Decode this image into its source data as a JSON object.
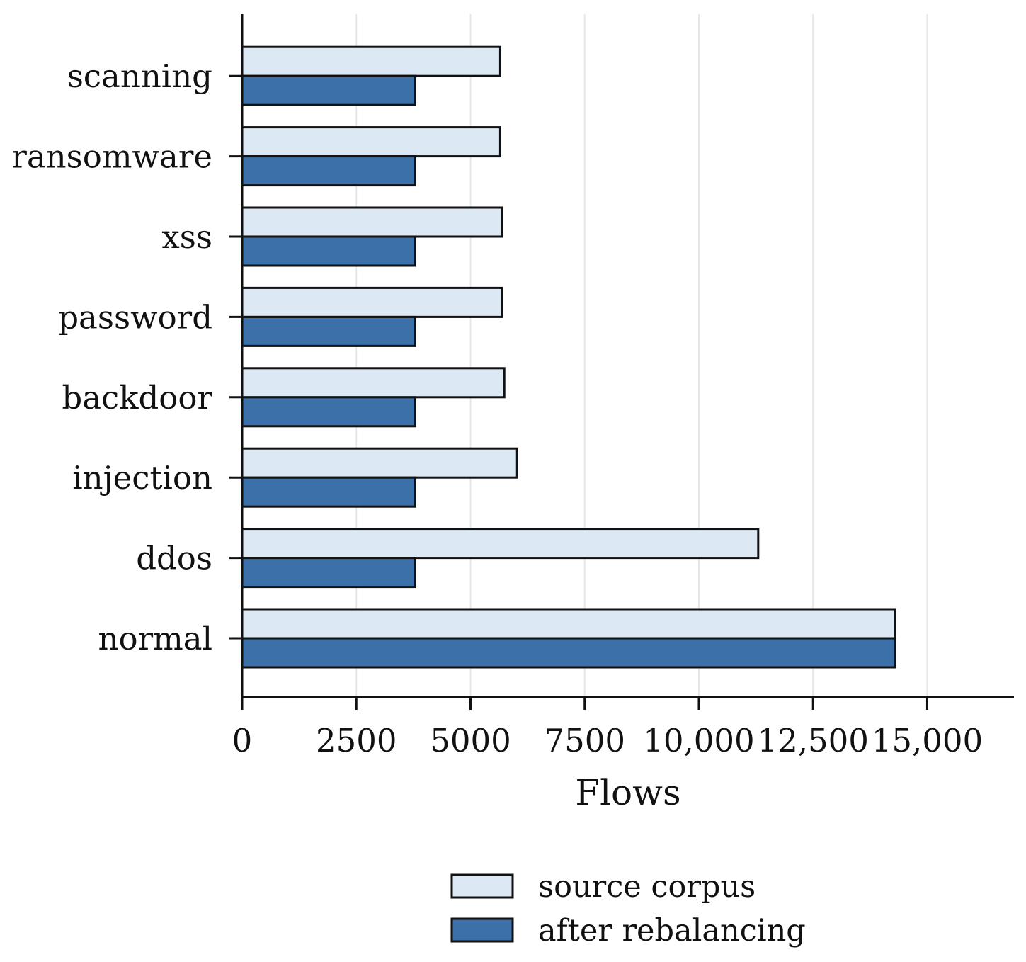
{
  "chart_data": {
    "type": "bar",
    "orientation": "horizontal",
    "categories": [
      "normal",
      "ddos",
      "injection",
      "backdoor",
      "password",
      "xss",
      "ransomware",
      "scanning"
    ],
    "series": [
      {
        "name": "source corpus",
        "color": "#dce8f4",
        "values": [
          14300,
          11300,
          6020,
          5740,
          5690,
          5690,
          5650,
          5650
        ]
      },
      {
        "name": "after rebalancing",
        "color": "#3b70a8",
        "values": [
          14300,
          3790,
          3790,
          3790,
          3790,
          3790,
          3790,
          3790
        ]
      }
    ],
    "xlabel": "Flows",
    "ylabel": "",
    "title": "",
    "xlim": [
      0,
      16900
    ],
    "xticks": [
      0,
      2500,
      5000,
      7500,
      10000,
      12500,
      15000
    ],
    "xtick_labels": [
      "0",
      "2500",
      "5000",
      "7500",
      "10,000",
      "12,500",
      "15,000"
    ],
    "grid": "vertical",
    "legend_position": "bottom-center"
  }
}
